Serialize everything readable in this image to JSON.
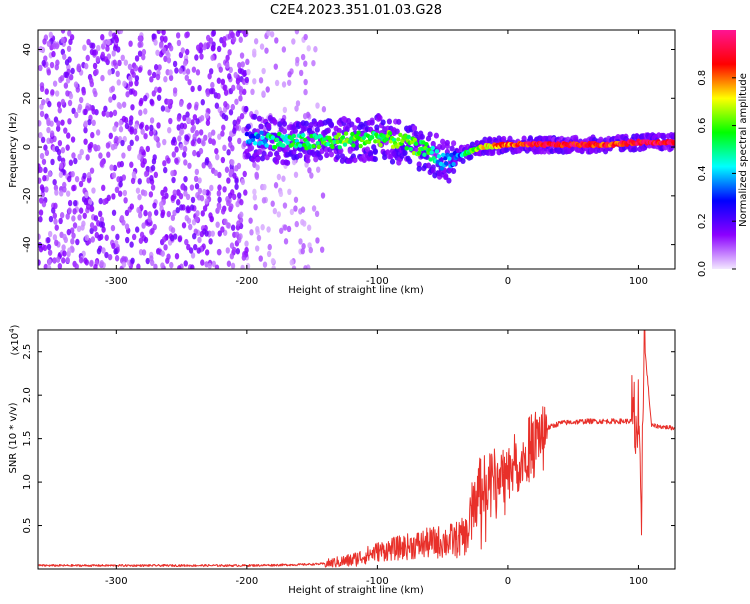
{
  "title": "C2E4.2023.351.01.03.G28",
  "chart_data": [
    {
      "type": "heatmap",
      "xlabel": "Height of straight line (km)",
      "ylabel": "Frequency (Hz)",
      "xlim": [
        -360,
        128
      ],
      "ylim": [
        -50,
        48
      ],
      "x_ticks": [
        -300,
        -200,
        -100,
        0,
        100
      ],
      "y_ticks": [
        -40,
        -20,
        0,
        20,
        40
      ],
      "x_tick_labels": [
        "-300",
        "-200",
        "-100",
        "0",
        "100"
      ],
      "y_tick_labels": [
        "-40",
        "-20",
        "0",
        "20",
        "40"
      ],
      "colorbar": {
        "label": "Normalized spectral amplitude",
        "range": [
          0,
          1
        ],
        "ticks": [
          0.0,
          0.2,
          0.4,
          0.6,
          0.8
        ],
        "tick_labels": [
          "0.0",
          "0.2",
          "0.4",
          "0.6",
          "0.8"
        ],
        "colormap": [
          "#f3e8ff",
          "#8b00ff",
          "#0000ff",
          "#00ffff",
          "#00ff00",
          "#ffff00",
          "#ff0000",
          "#ff1493"
        ]
      },
      "signal_trace": {
        "x": [
          -200,
          -180,
          -160,
          -140,
          -120,
          -100,
          -80,
          -60,
          -50,
          -40,
          -30,
          -20,
          0,
          20,
          40,
          60,
          80,
          100,
          128
        ],
        "y": [
          4,
          3,
          2,
          2,
          3,
          4,
          2,
          -2,
          -6,
          -4,
          -2,
          0,
          1,
          1,
          1,
          1,
          1,
          2,
          2
        ],
        "amplitude": [
          0.3,
          0.5,
          0.5,
          0.55,
          0.6,
          0.55,
          0.6,
          0.55,
          0.35,
          0.3,
          0.5,
          0.7,
          0.8,
          0.9,
          0.9,
          0.9,
          0.85,
          0.9,
          0.9
        ]
      },
      "noise_region_x": [
        -360,
        -150
      ],
      "grid": false
    },
    {
      "type": "line",
      "xlabel": "Height of straight line (km)",
      "ylabel": "SNR (10 * v/v)",
      "y_scale_note": "(x10",
      "y_scale_exp": "4",
      "y_scale_close": ")",
      "xlim": [
        -360,
        128
      ],
      "ylim": [
        0,
        2.75
      ],
      "x_ticks": [
        -300,
        -200,
        -100,
        0,
        100
      ],
      "y_ticks": [
        0.5,
        1.0,
        1.5,
        2.0,
        2.5
      ],
      "x_tick_labels": [
        "-300",
        "-200",
        "-100",
        "0",
        "100"
      ],
      "y_tick_labels": [
        "0.5",
        "1.0",
        "1.5",
        "2.0",
        "2.5"
      ],
      "series": [
        {
          "color": "#e8302a",
          "x": [
            -360,
            -300,
            -250,
            -200,
            -160,
            -140,
            -120,
            -100,
            -80,
            -60,
            -40,
            -30,
            -25,
            -20,
            -10,
            0,
            10,
            20,
            30,
            40,
            60,
            80,
            95,
            100,
            102,
            104,
            110,
            128
          ],
          "y": [
            0.04,
            0.04,
            0.04,
            0.04,
            0.05,
            0.06,
            0.1,
            0.2,
            0.25,
            0.3,
            0.33,
            0.4,
            0.9,
            0.95,
            1.05,
            1.15,
            1.25,
            1.5,
            1.62,
            1.68,
            1.7,
            1.7,
            1.7,
            1.6,
            0.3,
            2.7,
            1.65,
            1.62
          ]
        }
      ],
      "grid": false
    }
  ]
}
